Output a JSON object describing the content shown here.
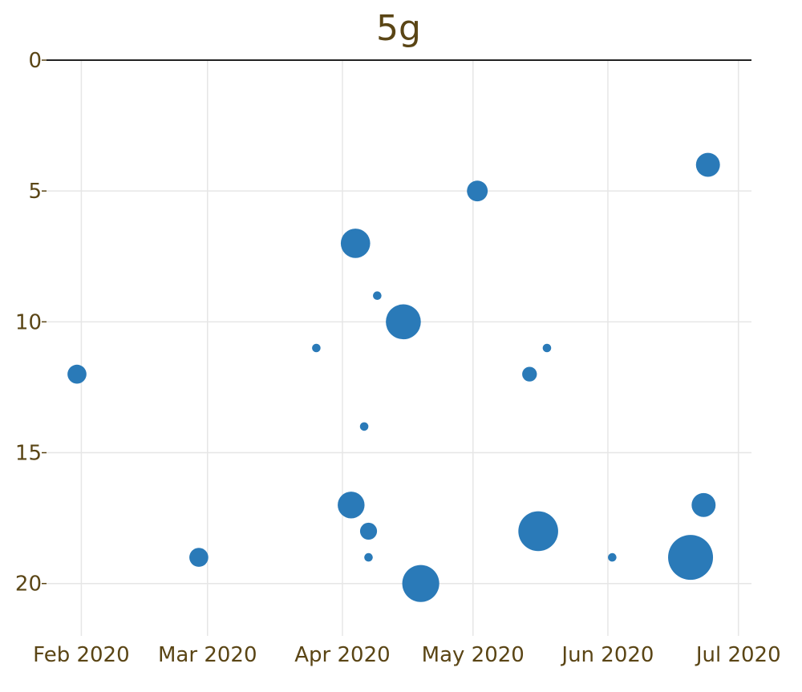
{
  "chart_data": {
    "type": "scatter",
    "title": "5g",
    "xlabel": "",
    "ylabel": "",
    "x_axis": {
      "kind": "date",
      "range": [
        "2020-01-24",
        "2020-07-04"
      ],
      "ticks": [
        {
          "date": "2020-02-01",
          "label": "Feb 2020"
        },
        {
          "date": "2020-03-01",
          "label": "Mar 2020"
        },
        {
          "date": "2020-04-01",
          "label": "Apr 2020"
        },
        {
          "date": "2020-05-01",
          "label": "May 2020"
        },
        {
          "date": "2020-06-01",
          "label": "Jun 2020"
        },
        {
          "date": "2020-07-01",
          "label": "Jul 2020"
        }
      ]
    },
    "y_axis": {
      "reversed": true,
      "range": [
        0,
        22
      ],
      "ticks": [
        {
          "value": 0,
          "label": "0"
        },
        {
          "value": 5,
          "label": "5"
        },
        {
          "value": 10,
          "label": "10"
        },
        {
          "value": 15,
          "label": "15"
        },
        {
          "value": 20,
          "label": "20"
        }
      ]
    },
    "grid": true,
    "color": "#2a7ab8",
    "points": [
      {
        "x": "2020-01-31",
        "y": 12,
        "size": 5
      },
      {
        "x": "2020-02-28",
        "y": 19,
        "size": 5
      },
      {
        "x": "2020-03-26",
        "y": 11,
        "size": 1
      },
      {
        "x": "2020-04-03",
        "y": 17,
        "size": 10
      },
      {
        "x": "2020-04-04",
        "y": 7,
        "size": 12
      },
      {
        "x": "2020-04-06",
        "y": 14,
        "size": 1
      },
      {
        "x": "2020-04-07",
        "y": 18,
        "size": 4
      },
      {
        "x": "2020-04-07",
        "y": 19,
        "size": 1
      },
      {
        "x": "2020-04-09",
        "y": 9,
        "size": 1
      },
      {
        "x": "2020-04-15",
        "y": 10,
        "size": 17
      },
      {
        "x": "2020-04-19",
        "y": 20,
        "size": 19
      },
      {
        "x": "2020-05-02",
        "y": 5,
        "size": 6
      },
      {
        "x": "2020-05-14",
        "y": 12,
        "size": 3
      },
      {
        "x": "2020-05-16",
        "y": 18,
        "size": 22
      },
      {
        "x": "2020-05-18",
        "y": 11,
        "size": 1
      },
      {
        "x": "2020-06-02",
        "y": 19,
        "size": 1
      },
      {
        "x": "2020-06-20",
        "y": 19,
        "size": 28
      },
      {
        "x": "2020-06-23",
        "y": 17,
        "size": 8
      },
      {
        "x": "2020-06-24",
        "y": 4,
        "size": 8
      }
    ]
  }
}
